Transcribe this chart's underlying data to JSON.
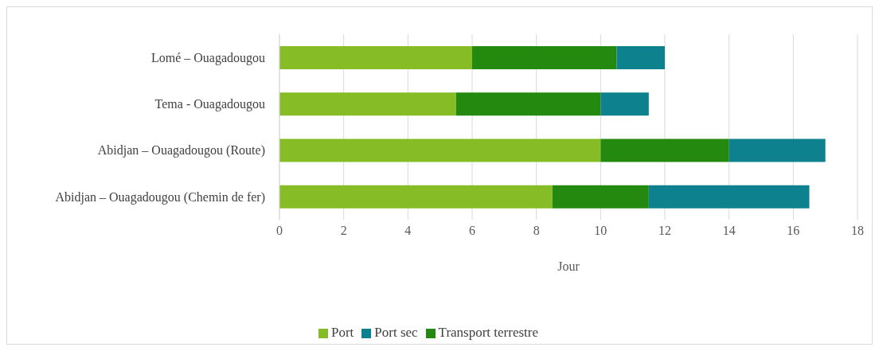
{
  "chart_data": {
    "type": "bar",
    "orientation": "horizontal",
    "stacked": true,
    "categories": [
      "Lomé – Ouagadougou",
      "Tema - Ouagadougou",
      "Abidjan – Ouagadougou (Route)",
      "Abidjan – Ouagadougou (Chemin de fer)"
    ],
    "series": [
      {
        "name": "Port",
        "color": "#86bc25",
        "values": [
          6,
          5.5,
          10,
          8.5
        ]
      },
      {
        "name": "Transport terrestre",
        "color": "#248a0f",
        "values": [
          4.5,
          4.5,
          4,
          3
        ]
      },
      {
        "name": "Port sec",
        "color": "#0e818f",
        "values": [
          1.5,
          1.5,
          3,
          5
        ]
      }
    ],
    "xlabel": "Jour",
    "xlim": [
      0,
      18
    ],
    "xticks": [
      0,
      2,
      4,
      6,
      8,
      10,
      12,
      14,
      16,
      18
    ],
    "grid": "x",
    "legend": "bottom"
  }
}
